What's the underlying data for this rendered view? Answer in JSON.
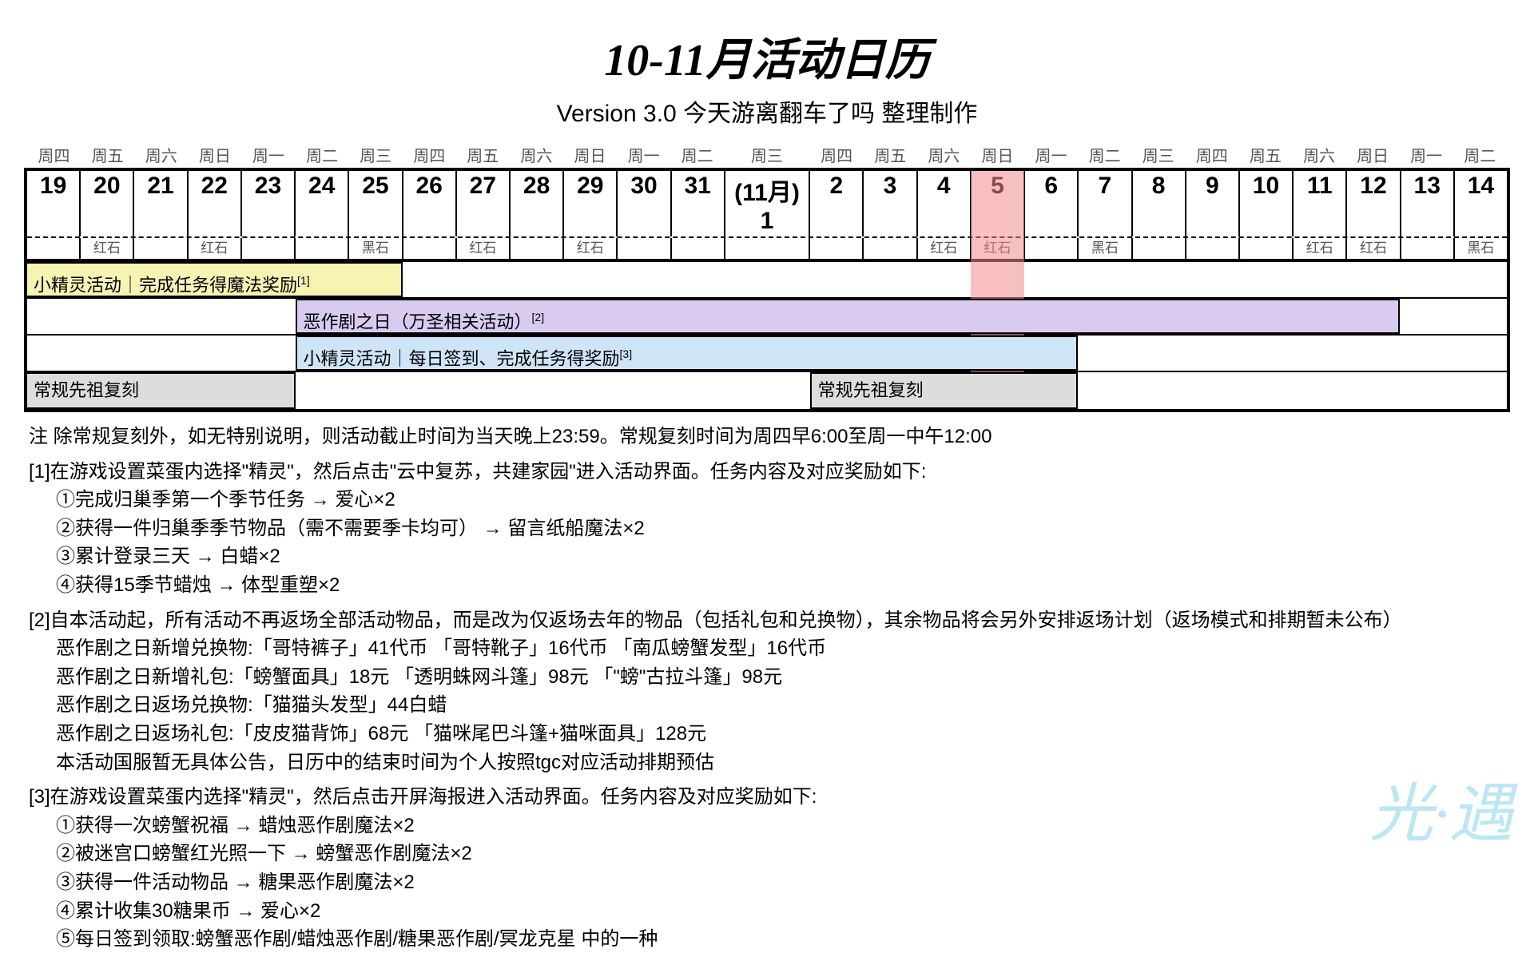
{
  "header": {
    "title": "10-11月活动日历",
    "subtitle": "Version 3.0  今天游离翻车了吗 整理制作"
  },
  "calendar": {
    "highlight_index": 17,
    "highlight_color": "#f08a8a",
    "weekdays": [
      "周四",
      "周五",
      "周六",
      "周日",
      "周一",
      "周二",
      "周三",
      "周四",
      "周五",
      "周六",
      "周日",
      "周一",
      "周二",
      "周三",
      "周四",
      "周五",
      "周六",
      "周日",
      "周一",
      "周二",
      "周三",
      "周四",
      "周五",
      "周六",
      "周日",
      "周一",
      "周二"
    ],
    "dates": [
      "19",
      "20",
      "21",
      "22",
      "23",
      "24",
      "25",
      "26",
      "27",
      "28",
      "29",
      "30",
      "31",
      "(11月) 1",
      "2",
      "3",
      "4",
      "5",
      "6",
      "7",
      "8",
      "9",
      "10",
      "11",
      "12",
      "13",
      "14"
    ],
    "wide_index": 13,
    "stones": [
      "",
      "红石",
      "",
      "红石",
      "",
      "",
      "黑石",
      "",
      "红石",
      "",
      "红石",
      "",
      "",
      "",
      "",
      "",
      "红石",
      "红石",
      "",
      "黑石",
      "",
      "",
      "",
      "红石",
      "红石",
      "",
      "黑石"
    ]
  },
  "events": {
    "rows": [
      {
        "bars": [
          {
            "label": "小精灵活动｜完成任务得魔法奖励",
            "sup": "[1]",
            "start": 0,
            "end": 7,
            "bg": "#f6f3b3",
            "border_left": false,
            "border_right": true
          }
        ]
      },
      {
        "bars": [
          {
            "label": "恶作剧之日（万圣相关活动）",
            "sup": "[2]",
            "start": 5,
            "end": 25,
            "bg": "#d9cbf0",
            "border_left": true,
            "border_right": true
          }
        ]
      },
      {
        "bars": [
          {
            "label": "小精灵活动｜每日签到、完成任务得奖励",
            "sup": "[3]",
            "start": 5,
            "end": 19,
            "bg": "#cfe5f7",
            "border_left": true,
            "border_right": true
          }
        ]
      },
      {
        "bars": [
          {
            "label": "常规先祖复刻",
            "sup": "",
            "start": 0,
            "end": 5,
            "bg": "#dddddd",
            "border_left": false,
            "border_right": true
          },
          {
            "label": "常规先祖复刻",
            "sup": "",
            "start": 14,
            "end": 19,
            "bg": "#dddddd",
            "border_left": true,
            "border_right": true
          }
        ]
      }
    ]
  },
  "notes": {
    "intro": "注 除常规复刻外，如无特别说明，则活动截止时间为当天晚上23:59。常规复刻时间为周四早6:00至周一中午12:00",
    "blocks": [
      {
        "head": "[1]在游戏设置菜蛋内选择\"精灵\"，然后点击\"云中复苏，共建家园\"进入活动界面。任务内容及对应奖励如下:",
        "items": [
          "①完成归巢季第一个季节任务 → 爱心×2",
          "②获得一件归巢季季节物品（需不需要季卡均可） → 留言纸船魔法×2",
          "③累计登录三天 → 白蜡×2",
          "④获得15季节蜡烛 → 体型重塑×2"
        ]
      },
      {
        "head": "[2]自本活动起，所有活动不再返场全部活动物品，而是改为仅返场去年的物品（包括礼包和兑换物），其余物品将会另外安排返场计划（返场模式和排期暂未公布）",
        "items": [
          "恶作剧之日新增兑换物:「哥特裤子」41代币  「哥特靴子」16代币  「南瓜螃蟹发型」16代币",
          "恶作剧之日新增礼包:「螃蟹面具」18元    「透明蛛网斗篷」98元    「\"螃\"古拉斗篷」98元",
          "恶作剧之日返场兑换物:「猫猫头发型」44白蜡",
          "恶作剧之日返场礼包:「皮皮猫背饰」68元    「猫咪尾巴斗篷+猫咪面具」128元",
          "本活动国服暂无具体公告，日历中的结束时间为个人按照tgc对应活动排期预估"
        ]
      },
      {
        "head": "[3]在游戏设置菜蛋内选择\"精灵\"，然后点击开屏海报进入活动界面。任务内容及对应奖励如下:",
        "items": [
          "①获得一次螃蟹祝福 → 蜡烛恶作剧魔法×2",
          "②被迷宫口螃蟹红光照一下 → 螃蟹恶作剧魔法×2",
          "③获得一件活动物品 → 糖果恶作剧魔法×2",
          "④累计收集30糖果币 → 爱心×2",
          "⑤每日签到领取:螃蟹恶作剧/蜡烛恶作剧/糖果恶作剧/冥龙克星 中的一种"
        ]
      }
    ]
  },
  "watermark": "光·遇",
  "style": {
    "title_fontsize": 56,
    "subtitle_fontsize": 30,
    "date_fontsize": 30,
    "event_fontsize": 22,
    "note_fontsize": 24,
    "border_color": "#000000",
    "background": "#ffffff"
  }
}
